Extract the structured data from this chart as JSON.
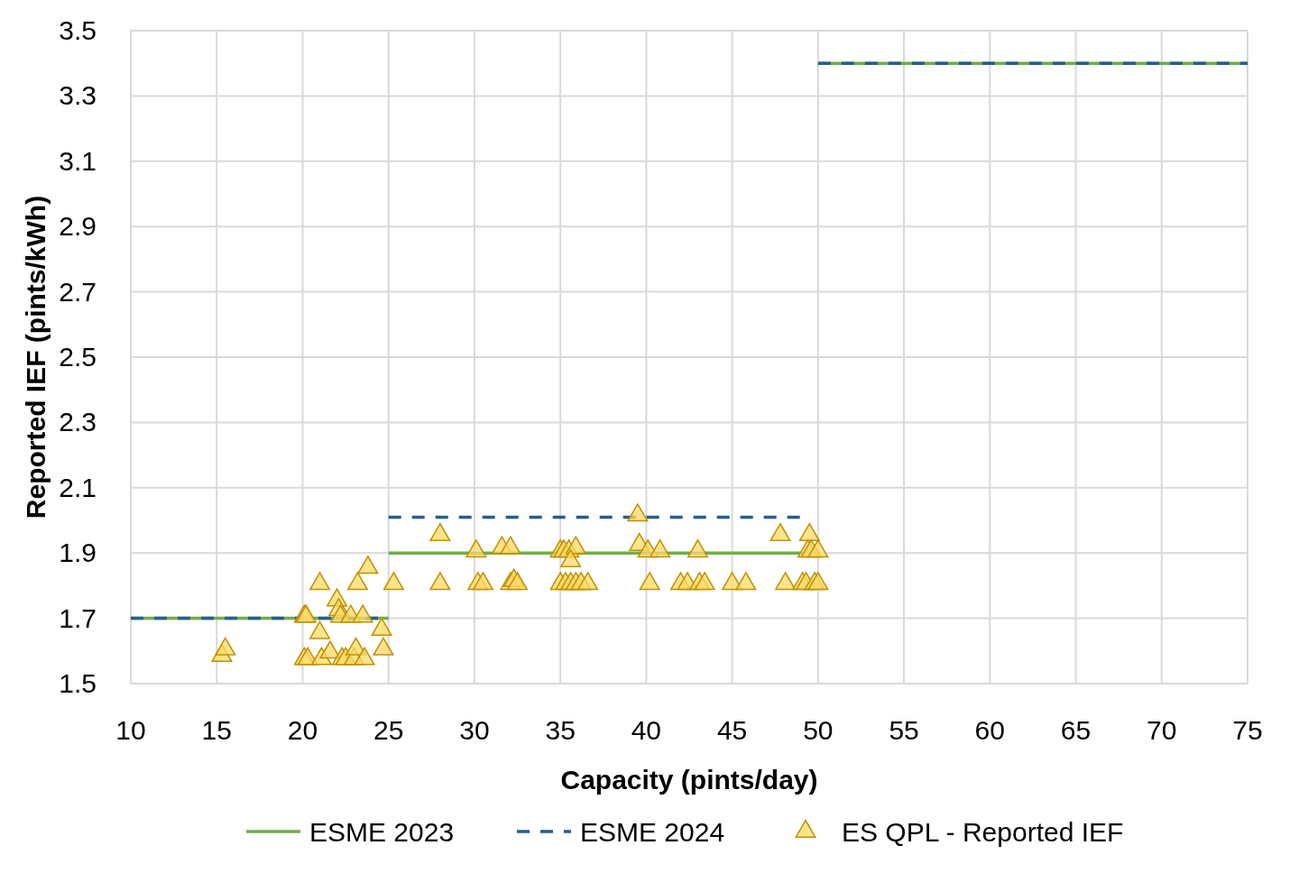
{
  "chart_data": {
    "type": "scatter",
    "xlabel": "Capacity (pints/day)",
    "ylabel": "Reported IEF (pints/kWh)",
    "xlim": [
      10,
      75
    ],
    "xticks": [
      10,
      15,
      20,
      25,
      30,
      35,
      40,
      45,
      50,
      55,
      60,
      65,
      70,
      75
    ],
    "ylim": [
      1.5,
      3.5
    ],
    "yticks": [
      {
        "value": 1.5,
        "label": "1.5"
      },
      {
        "value": 1.7,
        "label": "1.7"
      },
      {
        "value": 1.9,
        "label": "1.9"
      },
      {
        "value": 2.1,
        "label": "2.1"
      },
      {
        "value": 2.3,
        "label": "2.3"
      },
      {
        "value": 2.5,
        "label": "2.5"
      },
      {
        "value": 2.7,
        "label": "2.7"
      },
      {
        "value": 2.9,
        "label": "2.9"
      },
      {
        "value": 3.1,
        "label": "3.1"
      },
      {
        "value": 3.3,
        "label": "3.3"
      },
      {
        "value": 3.5,
        "label": "3.5"
      }
    ],
    "grid": true,
    "legend": "bottom",
    "series": [
      {
        "name": "ESME 2023",
        "type": "line",
        "color": "#70ad47",
        "line_style": "solid",
        "x": [
          10,
          25,
          null,
          25,
          50,
          null,
          50,
          75
        ],
        "values": [
          1.7,
          1.7,
          null,
          1.9,
          1.9,
          null,
          3.4,
          3.4
        ]
      },
      {
        "name": "ESME 2024",
        "type": "line",
        "color": "#255e91",
        "line_style": "dashed",
        "x": [
          10,
          25,
          null,
          25,
          49.4,
          null,
          50,
          75
        ],
        "values": [
          1.7,
          1.7,
          null,
          2.01,
          2.01,
          null,
          3.4,
          3.4
        ]
      },
      {
        "name": "ES QPL - Reported IEF",
        "color": "#ffd966",
        "marker": "triangle",
        "x": [
          15.3,
          15.5,
          20.1,
          20.2,
          20.1,
          20.3,
          21,
          21,
          21.1,
          21.6,
          22,
          22.1,
          22.2,
          22.3,
          22.5,
          22.8,
          23,
          23.1,
          23.2,
          23.5,
          23.6,
          23.8,
          24.6,
          24.7,
          25.3,
          28,
          28,
          30.1,
          30.2,
          30.5,
          31.6,
          32.1,
          32.1,
          32.3,
          32.5,
          35,
          35.2,
          35.5,
          35.9,
          35.6,
          35,
          35.3,
          35.6,
          35.9,
          36.2,
          36.6,
          39.5,
          39.6,
          40.1,
          40.2,
          40.8,
          42,
          42.4,
          43,
          43.1,
          43.4,
          45,
          45.8,
          47.8,
          48.1,
          49.1,
          49.3,
          49.5,
          49.4,
          49.6,
          49.8,
          50,
          50
        ],
        "values": [
          1.58,
          1.6,
          1.7,
          1.7,
          1.57,
          1.57,
          1.8,
          1.65,
          1.57,
          1.59,
          1.75,
          1.72,
          1.7,
          1.57,
          1.57,
          1.7,
          1.57,
          1.6,
          1.8,
          1.7,
          1.57,
          1.85,
          1.66,
          1.6,
          1.8,
          1.95,
          1.8,
          1.9,
          1.8,
          1.8,
          1.91,
          1.91,
          1.8,
          1.81,
          1.8,
          1.9,
          1.9,
          1.9,
          1.91,
          1.87,
          1.8,
          1.8,
          1.8,
          1.8,
          1.8,
          1.8,
          2.01,
          1.92,
          1.9,
          1.8,
          1.9,
          1.8,
          1.8,
          1.9,
          1.8,
          1.8,
          1.8,
          1.8,
          1.95,
          1.8,
          1.8,
          1.8,
          1.95,
          1.9,
          1.9,
          1.8,
          1.9,
          1.8
        ]
      }
    ]
  }
}
